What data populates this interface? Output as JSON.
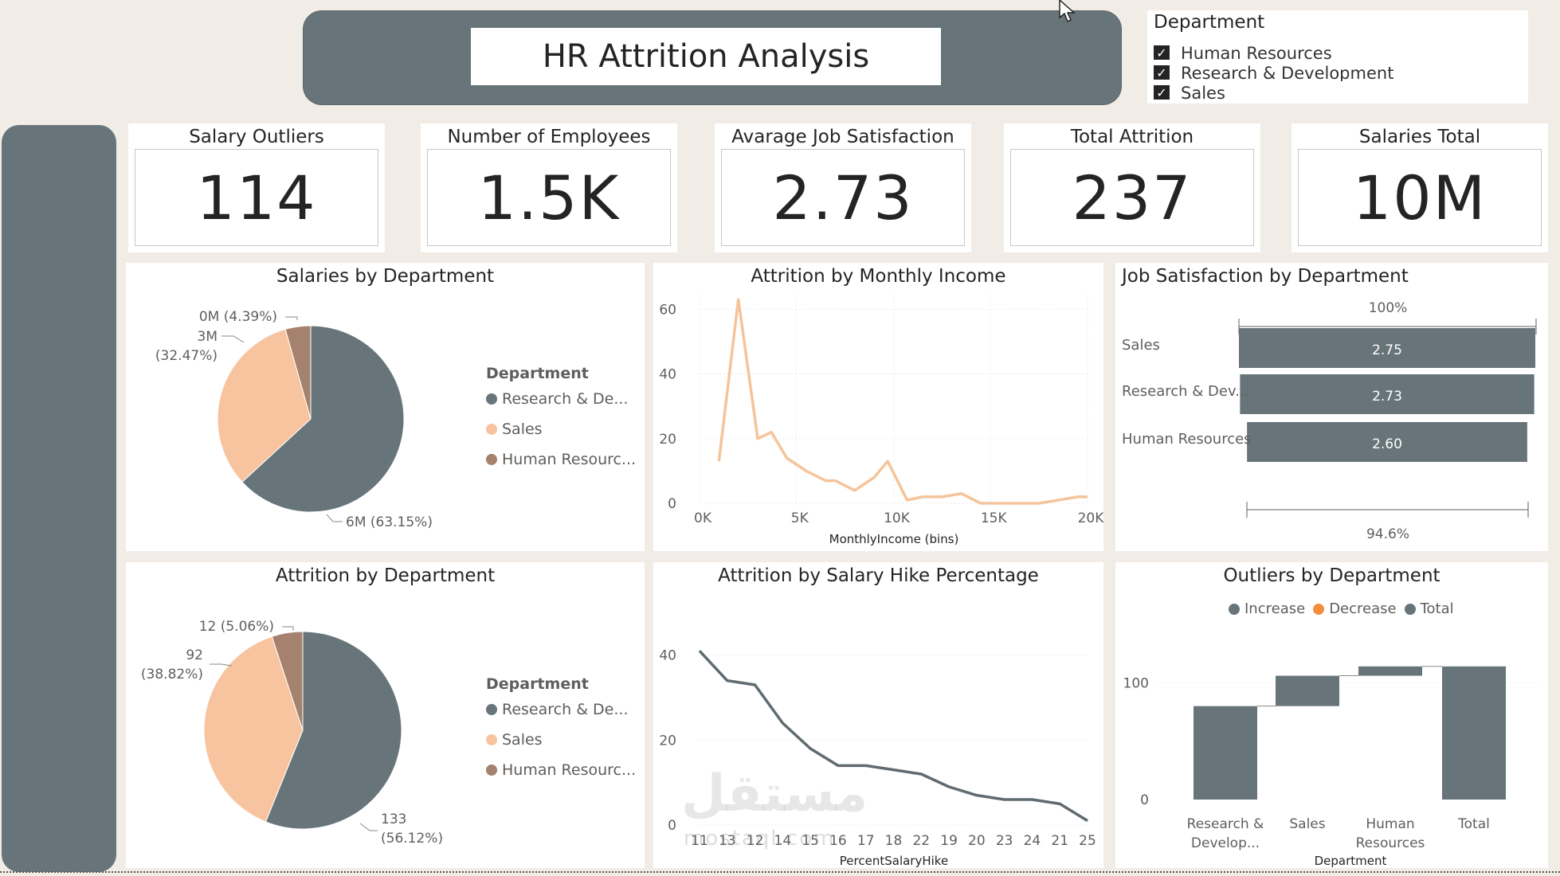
{
  "header": {
    "title": "HR Attrition Analysis"
  },
  "slicer": {
    "title": "Department",
    "items": [
      {
        "label": "Human Resources",
        "checked": true
      },
      {
        "label": "Research & Development",
        "checked": true
      },
      {
        "label": "Sales",
        "checked": true
      }
    ]
  },
  "kpis": [
    {
      "label": "Salary Outliers",
      "value": "114"
    },
    {
      "label": "Number of Employees",
      "value": "1.5K"
    },
    {
      "label": "Avarage Job Satisfaction",
      "value": "2.73"
    },
    {
      "label": "Total Attrition",
      "value": "237"
    },
    {
      "label": "Salaries Total",
      "value": "10M"
    }
  ],
  "colors": {
    "slate": "#67757a",
    "peach": "#f7c49f",
    "brown": "#a5826d",
    "orange": "#f58d3f",
    "line_peach": "#f5c49b",
    "line_slate": "#5f6b70"
  },
  "chart_data": [
    {
      "id": "salaries_by_department",
      "type": "pie",
      "title": "Salaries by Department",
      "legend_title": "Department",
      "legend": [
        "Research & De...",
        "Sales",
        "Human Resourc..."
      ],
      "slices": [
        {
          "name": "Research & Development",
          "value": 63.15,
          "label_top": "6M (63.15%)",
          "label_bottom": ""
        },
        {
          "name": "Sales",
          "value": 32.47,
          "label_top": "3M",
          "label_bottom": "(32.47%)"
        },
        {
          "name": "Human Resources",
          "value": 4.39,
          "label_top": "0M (4.39%)",
          "label_bottom": ""
        }
      ]
    },
    {
      "id": "attrition_by_department",
      "type": "pie",
      "title": "Attrition by Department",
      "legend_title": "Department",
      "legend": [
        "Research & De...",
        "Sales",
        "Human Resourc..."
      ],
      "slices": [
        {
          "name": "Research & Development",
          "value": 56.12,
          "label_top": "133",
          "label_bottom": "(56.12%)"
        },
        {
          "name": "Sales",
          "value": 38.82,
          "label_top": "92",
          "label_bottom": "(38.82%)"
        },
        {
          "name": "Human Resources",
          "value": 5.06,
          "label_top": "12 (5.06%)",
          "label_bottom": ""
        }
      ]
    },
    {
      "id": "attrition_by_monthly_income",
      "type": "line",
      "title": "Attrition by Monthly Income",
      "xlabel": "MonthlyIncome (bins)",
      "ylabel": "",
      "x": [
        1000,
        2000,
        3000,
        3700,
        4500,
        5500,
        6500,
        7000,
        8000,
        9000,
        9700,
        10700,
        11500,
        12500,
        13500,
        14500,
        15500,
        16500,
        17500,
        18500,
        19500,
        20000
      ],
      "y": [
        13,
        63,
        20,
        22,
        14,
        10,
        7,
        7,
        4,
        8,
        13,
        1,
        2,
        2,
        3,
        0,
        0,
        0,
        0,
        1,
        2,
        2
      ],
      "xlim": [
        0,
        20000
      ],
      "ylim": [
        0,
        65
      ],
      "xticks": [
        "0K",
        "5K",
        "10K",
        "15K",
        "20K"
      ],
      "yticks": [
        "0",
        "20",
        "40",
        "60"
      ]
    },
    {
      "id": "job_satisfaction_by_department",
      "type": "bar",
      "title": "Job Satisfaction by Department",
      "categories": [
        "Sales",
        "Research & Dev...",
        "Human Resources"
      ],
      "values": [
        2.75,
        2.73,
        2.6
      ],
      "value_labels": [
        "2.75",
        "2.73",
        "2.60"
      ],
      "pct_top": "100%",
      "pct_bottom": "94.6%"
    },
    {
      "id": "attrition_by_salary_hike",
      "type": "line",
      "title": "Attrition by Salary Hike Percentage",
      "xlabel": "PercentSalaryHike",
      "categories": [
        "11",
        "13",
        "12",
        "14",
        "15",
        "16",
        "17",
        "18",
        "22",
        "19",
        "20",
        "23",
        "24",
        "21",
        "25"
      ],
      "values": [
        41,
        34,
        33,
        24,
        18,
        14,
        14,
        13,
        12,
        9,
        7,
        6,
        6,
        5,
        1
      ],
      "ylim": [
        0,
        45
      ],
      "yticks": [
        "0",
        "20",
        "40"
      ]
    },
    {
      "id": "outliers_by_department",
      "type": "waterfall",
      "title": "Outliers by Department",
      "legend": [
        {
          "label": "Increase",
          "color": "#67757a"
        },
        {
          "label": "Decrease",
          "color": "#f58d3f"
        },
        {
          "label": "Total",
          "color": "#67757a"
        }
      ],
      "categories": [
        [
          "Research &",
          "Develop..."
        ],
        [
          "Sales",
          ""
        ],
        [
          "Human",
          "Resources"
        ],
        [
          "Total",
          ""
        ]
      ],
      "values": [
        80,
        26,
        8,
        114
      ],
      "xlabel": "Department",
      "ylim": [
        0,
        120
      ],
      "yticks": [
        "0",
        "100"
      ]
    }
  ],
  "watermark": {
    "arabic": "مستقل",
    "latin": "mostaql.com"
  }
}
